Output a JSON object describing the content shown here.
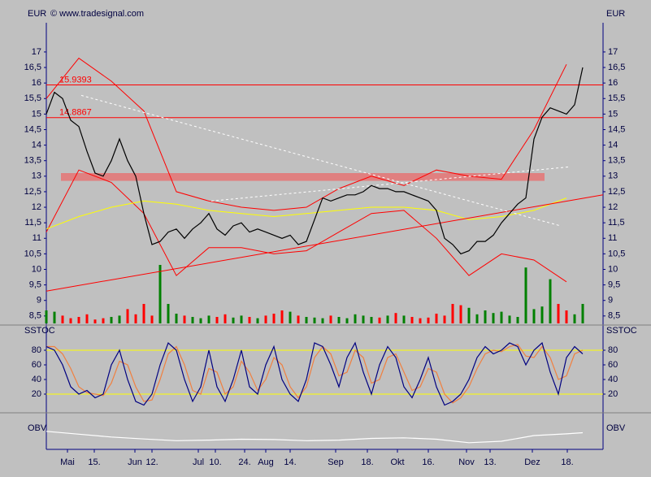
{
  "chart_data": [
    {
      "type": "line",
      "y_label": "EUR",
      "source": "© www.tradesignal.com",
      "x": [
        0,
        1,
        2,
        3,
        4,
        5,
        6,
        7,
        8,
        9,
        10,
        11,
        12,
        13,
        14,
        15,
        16,
        17,
        18,
        19,
        20,
        21,
        22,
        23,
        24,
        25,
        26,
        27,
        28,
        29,
        30,
        31,
        32,
        33,
        34,
        35,
        36,
        37,
        38,
        39,
        40,
        41,
        42,
        43,
        44,
        45,
        46,
        47,
        48,
        49,
        50,
        51,
        52,
        53,
        54,
        55,
        56,
        57,
        58,
        59,
        60,
        61,
        62,
        63,
        64,
        65,
        66
      ],
      "xlim": [
        0,
        68.5
      ],
      "ylim": [
        8.26,
        17.94
      ],
      "yticks": [
        {
          "value": 8.5,
          "label": "8,5"
        },
        9,
        {
          "value": 9.5,
          "label": "9,5"
        },
        10,
        {
          "value": 10.5,
          "label": "10,5"
        },
        11,
        {
          "value": 11.5,
          "label": "11,5"
        },
        12,
        {
          "value": 12.5,
          "label": "12,5"
        },
        13,
        {
          "value": 13.5,
          "label": "13,5"
        },
        14,
        {
          "value": 14.5,
          "label": "14,5"
        },
        15,
        {
          "value": 15.5,
          "label": "15,5"
        },
        16,
        {
          "value": 16.5,
          "label": "16,5"
        },
        17
      ],
      "series": [
        {
          "color": "#000000",
          "values": [
            15.0,
            15.7,
            15.5,
            14.8,
            14.6,
            13.8,
            13.1,
            13.0,
            13.5,
            14.2,
            13.5,
            13.0,
            11.8,
            10.8,
            10.9,
            11.2,
            11.3,
            11.0,
            11.3,
            11.5,
            11.8,
            11.3,
            11.1,
            11.4,
            11.5,
            11.2,
            11.3,
            11.2,
            11.1,
            11.0,
            11.1,
            10.8,
            10.9,
            11.6,
            12.3,
            12.2,
            12.3,
            12.4,
            12.4,
            12.5,
            12.7,
            12.6,
            12.6,
            12.5,
            12.5,
            12.4,
            12.3,
            12.2,
            11.9,
            11.0,
            10.8,
            10.5,
            10.6,
            10.9,
            10.9,
            11.1,
            11.5,
            11.8,
            12.1,
            12.3,
            14.2,
            14.9,
            15.2,
            15.1,
            15.0,
            15.3,
            16.5
          ]
        }
      ],
      "overlays": [
        {
          "color": "#ff0000",
          "x": [
            0,
            4,
            8,
            12,
            16,
            20,
            24,
            28,
            32,
            36,
            40,
            44,
            48,
            52,
            56,
            60,
            64
          ],
          "values": [
            15.5,
            16.8,
            16.06,
            15.1,
            12.5,
            12.2,
            12.0,
            11.9,
            12.0,
            12.6,
            13.0,
            12.7,
            13.2,
            13.0,
            12.9,
            14.5,
            16.6
          ]
        },
        {
          "color": "#ff0000",
          "x": [
            0,
            4,
            8,
            12,
            16,
            20,
            24,
            28,
            32,
            36,
            40,
            44,
            48,
            52,
            56,
            60,
            64
          ],
          "values": [
            11.2,
            13.2,
            12.8,
            11.8,
            9.8,
            10.7,
            10.7,
            10.5,
            10.6,
            11.2,
            11.8,
            11.9,
            11.0,
            9.8,
            10.5,
            10.3,
            9.6
          ]
        },
        {
          "color": "#ffff00",
          "x": [
            0,
            4,
            8,
            12,
            16,
            20,
            24,
            28,
            32,
            36,
            40,
            44,
            48,
            52,
            56,
            60,
            64
          ],
          "values": [
            11.3,
            11.7,
            12.0,
            12.2,
            12.1,
            11.9,
            11.8,
            11.7,
            11.8,
            11.9,
            12.0,
            12.0,
            11.9,
            11.6,
            11.7,
            11.9,
            12.3
          ]
        }
      ],
      "trendlines": [
        {
          "color": "#ff0000",
          "dashed": false,
          "x": [
            0,
            68.5
          ],
          "values": [
            9.3,
            12.4
          ]
        },
        {
          "color": "#ffffff",
          "dashed": true,
          "x": [
            4.3,
            63.3
          ],
          "values": [
            15.6,
            11.4
          ]
        },
        {
          "color": "#ffffff",
          "dashed": true,
          "x": [
            20.3,
            64.3
          ],
          "values": [
            12.2,
            13.3
          ]
        }
      ],
      "levels": [
        15.9393,
        14.8867
      ],
      "level_color": "#ff0000",
      "zone": {
        "x": [
          1.8,
          61.3
        ],
        "values": [
          12.85,
          13.1
        ],
        "color": "#e08080"
      },
      "volume": [
        20,
        18,
        12,
        8,
        10,
        14,
        6,
        8,
        10,
        12,
        22,
        14,
        30,
        12,
        90,
        30,
        15,
        12,
        10,
        8,
        12,
        10,
        14,
        9,
        12,
        10,
        8,
        12,
        15,
        20,
        18,
        12,
        10,
        9,
        8,
        12,
        10,
        8,
        14,
        12,
        10,
        9,
        12,
        16,
        12,
        10,
        8,
        9,
        15,
        12,
        30,
        28,
        24,
        14,
        20,
        16,
        18,
        12,
        10,
        86,
        22,
        26,
        68,
        30,
        20,
        14,
        30
      ],
      "vlim": [
        0,
        100
      ],
      "volume_up": "#008000",
      "volume_down": "#ff0000"
    },
    {
      "type": "line",
      "y_label": "SSTOC",
      "ylim": [
        0,
        100
      ],
      "yticks": [
        20,
        40,
        60,
        80
      ],
      "levels": [
        80,
        20
      ],
      "level_color": "#ffff00",
      "series": [
        {
          "color": "#f08040",
          "values": [
            85,
            85,
            75,
            55,
            30,
            22,
            20,
            18,
            35,
            65,
            60,
            30,
            10,
            12,
            40,
            75,
            85,
            60,
            25,
            20,
            55,
            50,
            20,
            30,
            65,
            50,
            25,
            40,
            70,
            60,
            30,
            15,
            30,
            70,
            85,
            75,
            45,
            50,
            80,
            70,
            35,
            40,
            70,
            75,
            50,
            25,
            30,
            55,
            50,
            20,
            8,
            15,
            30,
            55,
            75,
            80,
            78,
            85,
            88,
            72,
            70,
            85,
            70,
            40,
            45,
            75,
            80
          ]
        },
        {
          "color": "#000080",
          "values": [
            85,
            80,
            60,
            30,
            20,
            25,
            15,
            20,
            60,
            80,
            40,
            10,
            5,
            20,
            60,
            90,
            80,
            40,
            10,
            30,
            80,
            30,
            10,
            40,
            80,
            30,
            20,
            60,
            85,
            40,
            20,
            10,
            40,
            90,
            85,
            60,
            30,
            70,
            90,
            50,
            20,
            60,
            85,
            70,
            30,
            15,
            40,
            70,
            30,
            5,
            10,
            20,
            40,
            70,
            85,
            75,
            80,
            90,
            85,
            60,
            80,
            90,
            50,
            20,
            70,
            85,
            75
          ]
        }
      ]
    },
    {
      "type": "line",
      "y_label": "OBV",
      "ylim": [
        0,
        100
      ],
      "x": [
        0,
        4,
        8,
        12,
        16,
        20,
        24,
        28,
        32,
        36,
        40,
        44,
        48,
        52,
        56,
        60,
        64,
        66
      ],
      "series": [
        {
          "color": "#ffffff",
          "values": [
            55,
            45,
            35,
            28,
            22,
            24,
            27,
            26,
            22,
            24,
            30,
            32,
            27,
            15,
            20,
            40,
            46,
            50
          ]
        }
      ],
      "xlim": [
        0,
        68.5
      ],
      "xticks": [
        {
          "value": 2.6,
          "label": "Mai"
        },
        {
          "value": 5.9,
          "label": "15."
        },
        {
          "value": 10.9,
          "label": "Jun"
        },
        {
          "value": 13,
          "label": "12."
        },
        {
          "value": 18.7,
          "label": "Jul"
        },
        {
          "value": 20.8,
          "label": "10."
        },
        {
          "value": 24.4,
          "label": "24."
        },
        {
          "value": 27,
          "label": "Aug"
        },
        {
          "value": 30,
          "label": "14."
        },
        {
          "value": 35.6,
          "label": "Sep"
        },
        {
          "value": 39.5,
          "label": "18."
        },
        {
          "value": 43.2,
          "label": "Okt"
        },
        {
          "value": 47,
          "label": "16."
        },
        {
          "value": 51.7,
          "label": "Nov"
        },
        {
          "value": 54.6,
          "label": "13."
        },
        {
          "value": 59.8,
          "label": "Dez"
        },
        {
          "value": 64.1,
          "label": "18."
        }
      ]
    }
  ]
}
